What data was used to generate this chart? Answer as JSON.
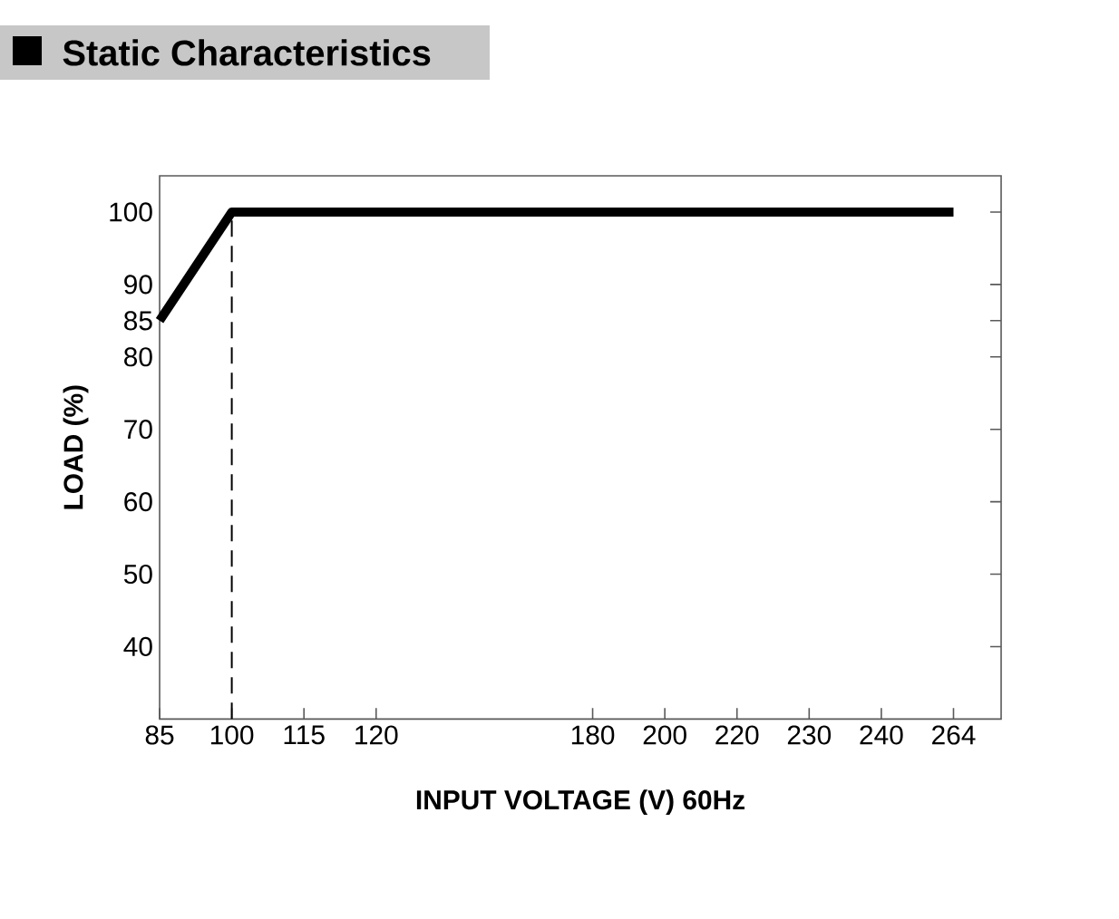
{
  "chart_data": {
    "type": "line",
    "title": "Static Characteristics",
    "xlabel": "INPUT VOLTAGE (V) 60Hz",
    "ylabel": "LOAD (%)",
    "categories": [
      "85",
      "100",
      "115",
      "120",
      null,
      null,
      "180",
      "200",
      "220",
      "230",
      "240",
      "264"
    ],
    "values": [
      85,
      100,
      100,
      100,
      100,
      100,
      100,
      100,
      100,
      100,
      100,
      100
    ],
    "color": "#000000",
    "line_style": "solid",
    "ylim": [
      30,
      105
    ],
    "yticks": [
      40,
      50,
      60,
      70,
      80,
      85,
      90,
      100
    ],
    "ref_lines": [
      {
        "axis": "x",
        "value": "100",
        "color": "#000000",
        "line_style": "dashed"
      }
    ]
  }
}
